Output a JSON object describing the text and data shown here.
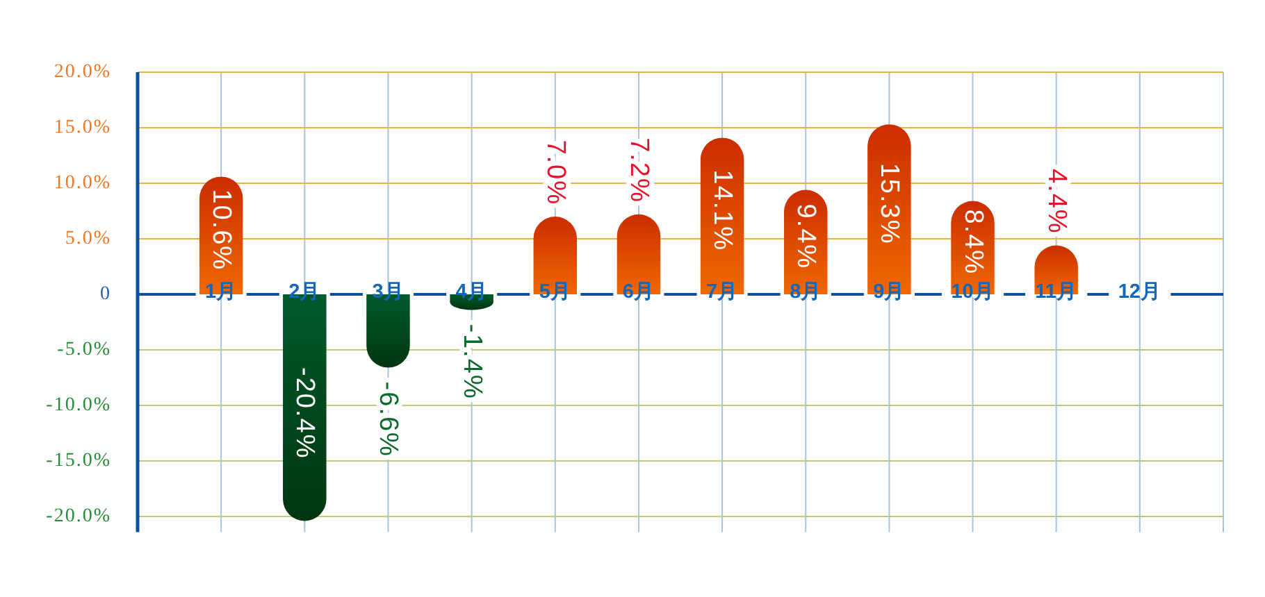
{
  "chart_data": {
    "type": "bar",
    "categories": [
      "1月",
      "2月",
      "3月",
      "4月",
      "5月",
      "6月",
      "7月",
      "8月",
      "9月",
      "10月",
      "11月",
      "12月"
    ],
    "values": [
      10.6,
      -20.4,
      -6.6,
      -1.4,
      7.0,
      7.2,
      14.1,
      9.4,
      15.3,
      8.4,
      4.4,
      null
    ],
    "colors": [
      "#e25000",
      "#004d1f",
      "#004d1f",
      "#004d1f",
      "#e25000",
      "#e25000",
      "#e25000",
      "#e25000",
      "#e25000",
      "#e25000",
      "#e25000",
      null
    ],
    "value_labels": [
      "10.6%",
      "-20.4%",
      "-6.6%",
      "-1.4%",
      "7.0%",
      "7.2%",
      "14.1%",
      "9.4%",
      "15.3%",
      "8.4%",
      "4.4%",
      null
    ],
    "ylim": [
      -21.4,
      20
    ],
    "yticks": [
      {
        "value": 20,
        "label": "20.0%"
      },
      {
        "value": 15,
        "label": "15.0%"
      },
      {
        "value": 10,
        "label": "10.0%"
      },
      {
        "value": 5,
        "label": "5.0%"
      },
      0,
      {
        "value": -5,
        "label": "-5.0%"
      },
      {
        "value": -10,
        "label": "-10.0%"
      },
      {
        "value": -15,
        "label": "-15.0%"
      },
      {
        "value": -20,
        "label": "-20.0%"
      }
    ],
    "grid": true
  }
}
